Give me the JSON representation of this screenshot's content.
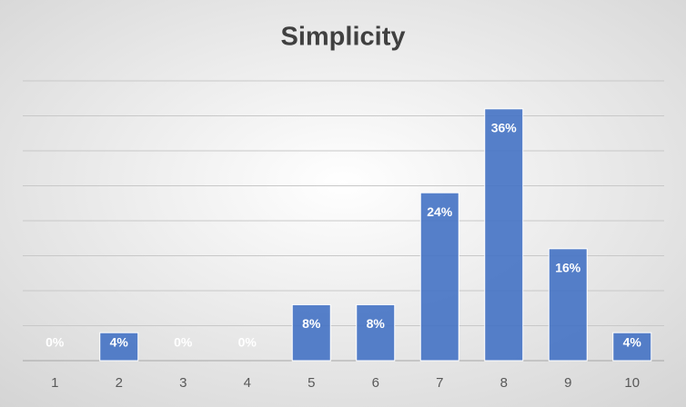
{
  "chart_data": {
    "type": "bar",
    "title": "Simplicity",
    "categories": [
      "1",
      "2",
      "3",
      "4",
      "5",
      "6",
      "7",
      "8",
      "9",
      "10"
    ],
    "values": [
      0,
      4,
      0,
      0,
      8,
      8,
      24,
      36,
      16,
      4
    ],
    "value_labels": [
      "0%",
      "4%",
      "0%",
      "0%",
      "8%",
      "8%",
      "24%",
      "36%",
      "16%",
      "4%"
    ],
    "color": "#4472c4",
    "ylim": [
      0,
      40
    ],
    "yticks": [
      0,
      5,
      10,
      15,
      20,
      25,
      30,
      35,
      40
    ],
    "grid": true
  }
}
